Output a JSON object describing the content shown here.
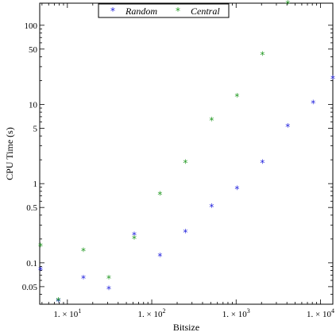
{
  "chart_data": {
    "type": "scatter",
    "title": "",
    "xlabel": "Bitsize",
    "ylabel": "CPU Time (s)",
    "x_scale": "log",
    "y_scale": "log",
    "xlim": [
      4.7,
      14000
    ],
    "ylim": [
      0.03,
      190
    ],
    "x_ticks": [
      {
        "value": 10,
        "label": "1. × 10",
        "exp": "1"
      },
      {
        "value": 100,
        "label": "1. × 10",
        "exp": "2"
      },
      {
        "value": 1000,
        "label": "1. × 10",
        "exp": "3"
      },
      {
        "value": 10000,
        "label": "1. × 10",
        "exp": "4"
      }
    ],
    "y_ticks": [
      {
        "value": 0.05,
        "label": "0.05"
      },
      {
        "value": 0.1,
        "label": "0.1"
      },
      {
        "value": 0.5,
        "label": "0.5"
      },
      {
        "value": 1,
        "label": "1"
      },
      {
        "value": 5,
        "label": "5"
      },
      {
        "value": 10,
        "label": "10"
      },
      {
        "value": 50,
        "label": "50"
      },
      {
        "value": 100,
        "label": "100"
      }
    ],
    "legend_position": "top-center",
    "grid": false,
    "series": [
      {
        "name": "Random",
        "color": "#2222dd",
        "marker": "*",
        "points": [
          {
            "x": 4.8,
            "y": 0.08
          },
          {
            "x": 7.8,
            "y": 0.032
          },
          {
            "x": 15.5,
            "y": 0.063
          },
          {
            "x": 31,
            "y": 0.046
          },
          {
            "x": 62,
            "y": 0.22
          },
          {
            "x": 125,
            "y": 0.12
          },
          {
            "x": 250,
            "y": 0.24
          },
          {
            "x": 512,
            "y": 0.5
          },
          {
            "x": 1024,
            "y": 0.84
          },
          {
            "x": 2048,
            "y": 1.8
          },
          {
            "x": 4096,
            "y": 5.2
          },
          {
            "x": 8192,
            "y": 10.2
          },
          {
            "x": 14000,
            "y": 21
          }
        ]
      },
      {
        "name": "Central",
        "color": "#229922",
        "marker": "*",
        "points": [
          {
            "x": 4.8,
            "y": 0.16
          },
          {
            "x": 7.8,
            "y": 0.033
          },
          {
            "x": 15.5,
            "y": 0.14
          },
          {
            "x": 31,
            "y": 0.063
          },
          {
            "x": 62,
            "y": 0.2
          },
          {
            "x": 125,
            "y": 0.72
          },
          {
            "x": 250,
            "y": 1.8
          },
          {
            "x": 512,
            "y": 6.2
          },
          {
            "x": 1024,
            "y": 12.5
          },
          {
            "x": 2048,
            "y": 42
          },
          {
            "x": 4096,
            "y": 185
          }
        ]
      }
    ]
  }
}
